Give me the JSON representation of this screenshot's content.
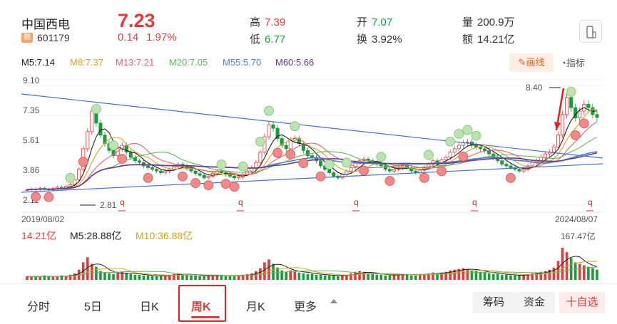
{
  "stock": {
    "name": "中国西电",
    "badge": "融",
    "code": "601179",
    "price": "7.23",
    "change": "0.14",
    "change_pct": "1.97%"
  },
  "stats": {
    "high_label": "高",
    "high": "7.39",
    "low_label": "低",
    "low": "6.77",
    "open_label": "开",
    "open": "7.07",
    "turnover_label": "换",
    "turnover": "3.92%",
    "volume_label": "量",
    "volume": "200.9万",
    "amount_label": "额",
    "amount": "14.21亿"
  },
  "ma": [
    {
      "label": "M5:7.14",
      "color": "#222222"
    },
    {
      "label": "M8:7.37",
      "color": "#e0a020"
    },
    {
      "label": "M13:7.21",
      "color": "#e0607a"
    },
    {
      "label": "M20:7.05",
      "color": "#5cb85c"
    },
    {
      "label": "M55:5.70",
      "color": "#4a8ac0"
    },
    {
      "label": "M60:5.66",
      "color": "#6a3a8c"
    }
  ],
  "toolbar": {
    "draw_label": "画线",
    "indicator_label": "指标"
  },
  "chart_data": {
    "type": "candlestick",
    "period": "weekly",
    "y_ticks": [
      "9.10",
      "7.35",
      "5.61",
      "3.86",
      "2.11"
    ],
    "ylim": [
      2.11,
      9.1
    ],
    "x_start": "2019/08/02",
    "x_end": "2024/08/07",
    "annotations": [
      {
        "label": "8.40",
        "type": "high"
      },
      {
        "label": "2.81",
        "type": "low"
      }
    ],
    "close_series": [
      3.0,
      3.05,
      3.02,
      3.1,
      3.05,
      3.0,
      3.08,
      3.15,
      3.1,
      3.2,
      3.3,
      3.6,
      4.2,
      5.4,
      6.4,
      7.6,
      6.9,
      6.2,
      5.7,
      5.3,
      5.0,
      5.4,
      5.6,
      5.2,
      4.9,
      4.7,
      4.6,
      4.4,
      4.3,
      4.2,
      4.1,
      4.0,
      4.1,
      4.2,
      4.35,
      4.5,
      4.4,
      4.25,
      4.1,
      3.95,
      3.85,
      3.7,
      3.8,
      3.95,
      4.1,
      4.0,
      3.9,
      3.8,
      3.7,
      3.75,
      3.9,
      4.1,
      4.3,
      4.6,
      5.2,
      6.1,
      6.8,
      6.6,
      6.0,
      5.6,
      5.4,
      5.9,
      6.0,
      5.7,
      5.3,
      5.0,
      4.9,
      4.7,
      4.4,
      4.2,
      4.0,
      3.8,
      3.7,
      3.9,
      4.1,
      4.3,
      4.6,
      4.7,
      4.8,
      4.7,
      4.6,
      4.5,
      4.4,
      4.2,
      4.1,
      4.2,
      4.3,
      4.4,
      4.3,
      4.1,
      4.0,
      4.15,
      4.3,
      4.5,
      4.7,
      4.6,
      4.75,
      4.9,
      5.2,
      5.4,
      5.6,
      5.75,
      5.8,
      5.6,
      5.5,
      5.4,
      5.3,
      5.1,
      4.9,
      4.7,
      4.5,
      4.4,
      4.3,
      4.2,
      4.1,
      4.2,
      4.4,
      4.6,
      4.7,
      4.9,
      5.1,
      5.2,
      5.5,
      6.2,
      7.4,
      8.4,
      7.8,
      7.2,
      7.6,
      8.0,
      7.8,
      7.4,
      7.23
    ],
    "volume_labels": {
      "value": "14.21亿",
      "m5": "M5:28.88亿",
      "m10": "M10:36.88亿",
      "max": "167.47亿"
    },
    "volume_series": [
      5,
      4,
      5,
      4,
      6,
      5,
      4,
      5,
      6,
      5,
      7,
      9,
      14,
      24,
      31,
      22,
      18,
      12,
      10,
      9,
      8,
      9,
      11,
      9,
      8,
      7,
      7,
      6,
      6,
      5,
      5,
      6,
      6,
      7,
      8,
      9,
      8,
      7,
      6,
      6,
      5,
      5,
      6,
      6,
      7,
      6,
      5,
      5,
      5,
      6,
      7,
      8,
      9,
      12,
      16,
      24,
      28,
      22,
      17,
      13,
      11,
      13,
      12,
      10,
      9,
      8,
      8,
      7,
      7,
      6,
      6,
      6,
      5,
      6,
      7,
      9,
      11,
      12,
      11,
      9,
      8,
      7,
      7,
      6,
      6,
      7,
      8,
      8,
      7,
      6,
      6,
      7,
      8,
      9,
      10,
      9,
      10,
      11,
      13,
      14,
      15,
      16,
      15,
      13,
      12,
      11,
      10,
      9,
      8,
      8,
      7,
      7,
      6,
      6,
      6,
      7,
      8,
      9,
      10,
      11,
      12,
      14,
      17,
      26,
      44,
      38,
      30,
      24,
      22,
      20,
      18,
      16,
      14
    ]
  },
  "tabs": [
    {
      "label": "分时"
    },
    {
      "label": "5日"
    },
    {
      "label": "日K"
    },
    {
      "label": "周K"
    },
    {
      "label": "月K"
    },
    {
      "label": "更多"
    }
  ],
  "actions": {
    "chips_label": "筹码",
    "funds_label": "资金",
    "watchlist_label": "十自选"
  },
  "colors": {
    "up": "#e23b3b",
    "down": "#1a9b3e",
    "accent": "#e23b3b"
  }
}
